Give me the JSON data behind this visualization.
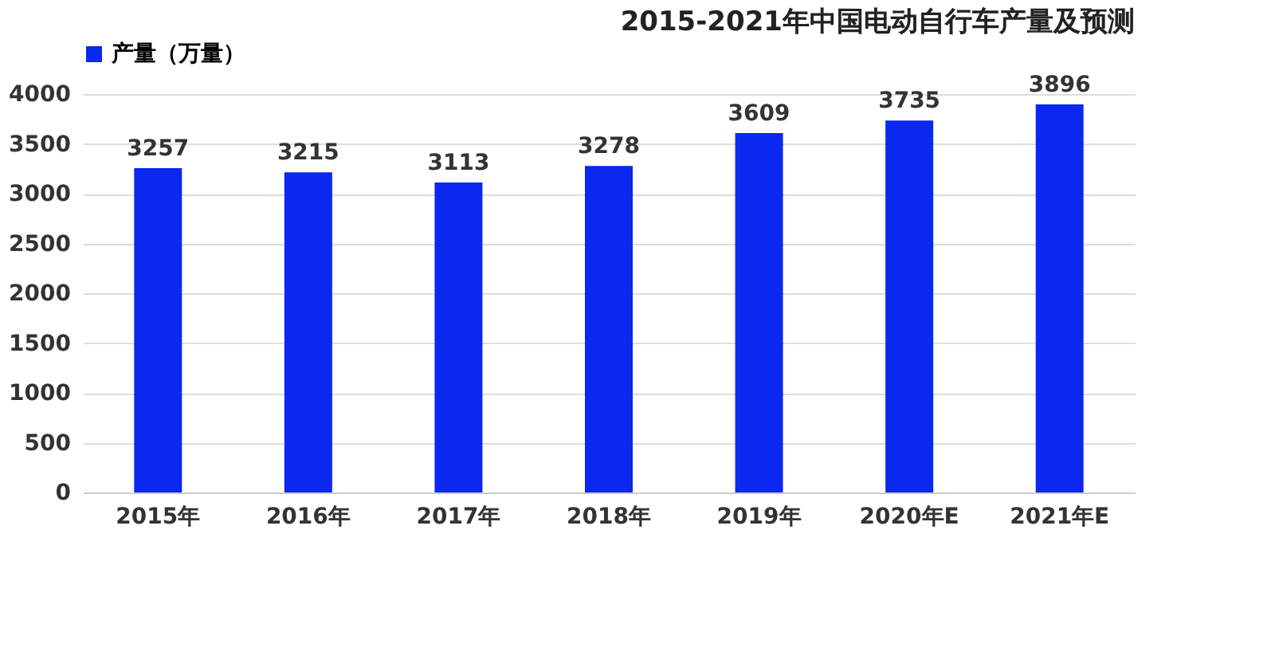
{
  "chart_data": {
    "type": "bar",
    "title": "2015-2021年中国电动自行车产量及预测",
    "categories": [
      "2015年",
      "2016年",
      "2017年",
      "2018年",
      "2019年",
      "2020年E",
      "2021年E"
    ],
    "series": [
      {
        "name": "产量（万量）",
        "color": "#0a28f0",
        "values": [
          3257,
          3215,
          3113,
          3278,
          3609,
          3735,
          3896
        ]
      }
    ],
    "ylim": [
      0,
      4000
    ],
    "yticks": [
      0,
      500,
      1000,
      1500,
      2000,
      2500,
      3000,
      3500,
      4000
    ],
    "grid": "y",
    "legend": "top",
    "data_labels": true
  }
}
